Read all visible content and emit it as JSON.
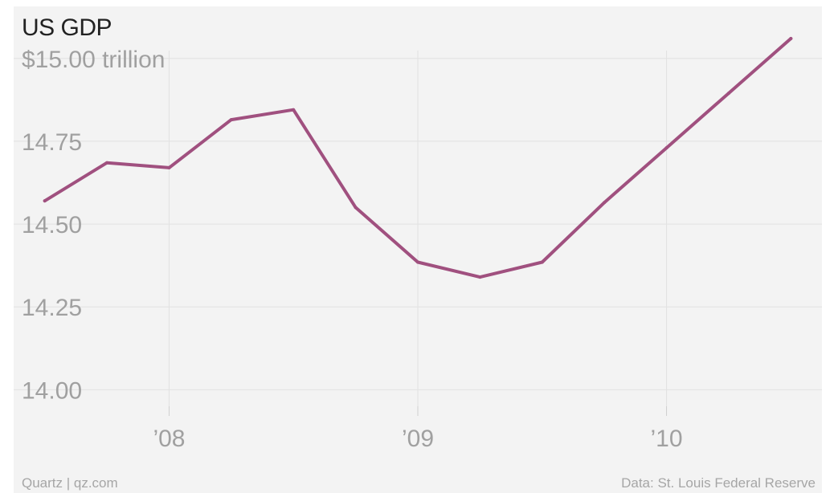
{
  "title": "US GDP",
  "source_left": "Quartz | qz.com",
  "source_right": "Data: St. Louis Federal Reserve",
  "colors": {
    "line": "#a0507f",
    "grid": "#e2e2e2",
    "background": "#f3f3f3"
  },
  "chart_data": {
    "type": "line",
    "title": "US GDP",
    "unit_label": "$15.00 trillion",
    "y_ticks": [
      {
        "value": 15.0,
        "label": "$15.00 trillion"
      },
      {
        "value": 14.75,
        "label": "14.75"
      },
      {
        "value": 14.5,
        "label": "14.50"
      },
      {
        "value": 14.25,
        "label": "14.25"
      },
      {
        "value": 14.0,
        "label": "14.00"
      }
    ],
    "x_ticks": [
      {
        "value": 2008,
        "label": "’08"
      },
      {
        "value": 2009,
        "label": "’09"
      },
      {
        "value": 2010,
        "label": "’10"
      }
    ],
    "ylim": [
      13.95,
      15.06
    ],
    "xlim": [
      2007.375,
      2010.625
    ],
    "grid": true,
    "series": [
      {
        "x": [
          "2007-07-01",
          "2007-10-01",
          "2008-01-01",
          "2008-04-01",
          "2008-07-01",
          "2008-10-01",
          "2009-01-01",
          "2009-04-01",
          "2009-07-01",
          "2009-10-01",
          "2010-01-01",
          "2010-04-01",
          "2010-07-01"
        ],
        "values": [
          14.57,
          14.685,
          14.67,
          14.815,
          14.845,
          14.55,
          14.385,
          14.34,
          14.385,
          14.565,
          14.73,
          14.895,
          15.06
        ]
      }
    ]
  }
}
